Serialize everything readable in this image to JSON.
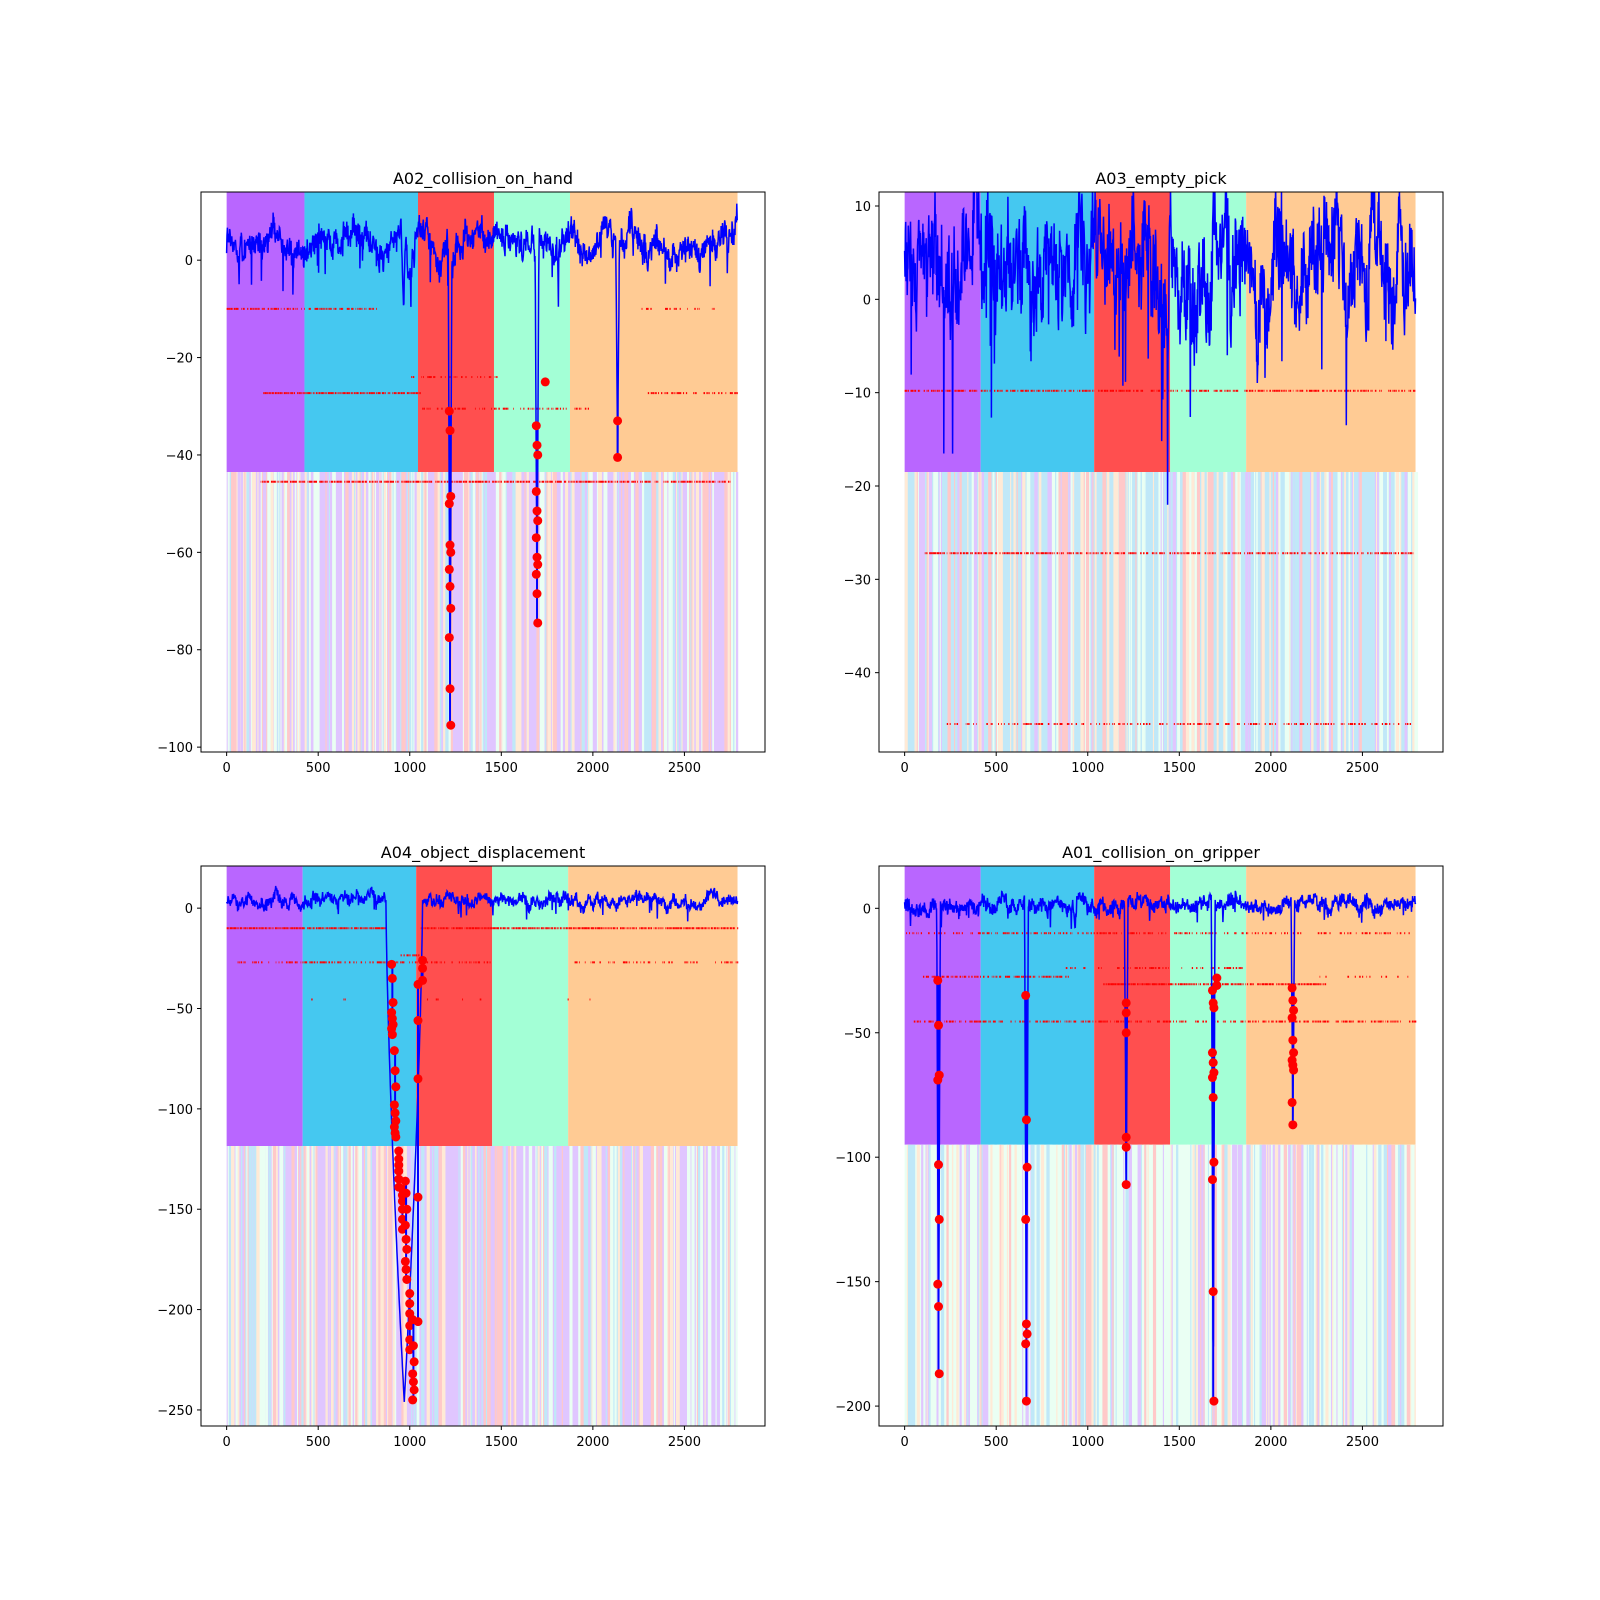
{
  "figure": {
    "panel_backgrounds": [
      "#b966ff",
      "#45c8f0",
      "#ff4f4f",
      "#a3ffd6",
      "#ffcb94"
    ],
    "line_color": "#0000ff",
    "marker_color": "#ff0000"
  },
  "chart_data": [
    {
      "type": "line",
      "title": "A02_collision_on_hand",
      "xlim": [
        -140,
        2940
      ],
      "ylim": [
        -101,
        14
      ],
      "xticks": [
        0,
        500,
        1000,
        1500,
        2000,
        2500
      ],
      "yticks": [
        0,
        -20,
        -40,
        -60,
        -80,
        -100
      ],
      "phase_boundaries": [
        0,
        425,
        1045,
        1460,
        1875,
        2790
      ],
      "strip_top": -43.5,
      "strip_bottom": -101,
      "dominant_strip": "#e0c6ff",
      "baseline": {
        "base": 3.5,
        "noise": 3.5,
        "dips": [
          {
            "x": 965,
            "depth": 14,
            "width": 12
          },
          {
            "x": 1220,
            "depth": 96,
            "width": 10
          },
          {
            "x": 1695,
            "depth": 74,
            "width": 10
          },
          {
            "x": 2135,
            "depth": 44,
            "width": 10
          },
          {
            "x": 1000,
            "depth": 6,
            "width": 30
          }
        ]
      },
      "dash_levels": [
        {
          "y": -10,
          "from": 0,
          "to": 820,
          "density": 0.7
        },
        {
          "y": -10,
          "from": 2250,
          "to": 2700,
          "density": 0.2
        },
        {
          "y": -27.3,
          "from": 200,
          "to": 1060,
          "density": 0.95
        },
        {
          "y": -27.3,
          "from": 2300,
          "to": 2790,
          "density": 0.6
        },
        {
          "y": -24,
          "from": 1000,
          "to": 1500,
          "density": 0.4
        },
        {
          "y": -30.5,
          "from": 1060,
          "to": 2000,
          "density": 0.5
        },
        {
          "y": -45.5,
          "from": 170,
          "to": 2750,
          "density": 0.85
        }
      ],
      "anomaly_points": [
        {
          "x": 1220,
          "ys": [
            -31,
            -35,
            -48.5,
            -50,
            -58.5,
            -60,
            -63.5,
            -67,
            -71.5,
            -77.5,
            -88,
            -95.5
          ]
        },
        {
          "x": 1695,
          "ys": [
            -34,
            -38,
            -40,
            -47.5,
            -51.5,
            -53.5,
            -57,
            -61,
            -62.5,
            -64.5,
            -68.5,
            -74.5
          ]
        },
        {
          "x": 1740,
          "ys": [
            -25
          ]
        },
        {
          "x": 2135,
          "ys": [
            -33,
            -40.5
          ]
        }
      ]
    },
    {
      "type": "line",
      "title": "A03_empty_pick",
      "xlim": [
        -140,
        2940
      ],
      "ylim": [
        -48.5,
        11.5
      ],
      "xticks": [
        0,
        500,
        1000,
        1500,
        2000,
        2500
      ],
      "yticks": [
        10,
        0,
        -10,
        -20,
        -30,
        -40
      ],
      "phase_boundaries": [
        0,
        415,
        1035,
        1450,
        1865,
        2790
      ],
      "strip_top": -18.5,
      "strip_bottom": -48.5,
      "dominant_strip": "#c0e8f8",
      "baseline": {
        "base": 4,
        "noise": 6,
        "dips": []
      },
      "dash_levels": [
        {
          "y": -9.8,
          "from": 0,
          "to": 2790,
          "density": 0.7
        },
        {
          "y": -27.2,
          "from": 110,
          "to": 2790,
          "density": 0.75
        },
        {
          "y": -45.5,
          "from": 230,
          "to": 2760,
          "density": 0.45
        }
      ],
      "anomaly_points": []
    },
    {
      "type": "line",
      "title": "A04_object_displacement",
      "xlim": [
        -140,
        2940
      ],
      "ylim": [
        -258,
        21
      ],
      "xticks": [
        0,
        500,
        1000,
        1500,
        2000,
        2500
      ],
      "yticks": [
        0,
        -50,
        -100,
        -150,
        -200,
        -250
      ],
      "phase_boundaries": [
        0,
        415,
        1035,
        1450,
        1865,
        2790
      ],
      "strip_top": -118.5,
      "strip_bottom": -258,
      "dominant_strip": "#e0c6ff",
      "baseline": {
        "base": 4,
        "noise": 3.5,
        "dips": []
      },
      "crash": {
        "from": 870,
        "to": 1070
      },
      "dash_levels": [
        {
          "y": -10,
          "from": 0,
          "to": 870,
          "density": 0.95
        },
        {
          "y": -10,
          "from": 1060,
          "to": 2790,
          "density": 0.95
        },
        {
          "y": -27,
          "from": 60,
          "to": 1450,
          "density": 0.5
        },
        {
          "y": -27,
          "from": 1900,
          "to": 2790,
          "density": 0.4
        },
        {
          "y": -23.5,
          "from": 950,
          "to": 1050,
          "density": 0.9
        },
        {
          "y": -45.5,
          "from": 150,
          "to": 2000,
          "density": 0.05
        }
      ],
      "anomaly_points": [
        {
          "x": 905,
          "ys": [
            -28,
            -35,
            -47,
            -52,
            -55,
            -58,
            -60,
            -63
          ]
        },
        {
          "x": 920,
          "ys": [
            -71,
            -81,
            -89,
            -98,
            -102,
            -106,
            -109,
            -112,
            -114
          ]
        },
        {
          "x": 940,
          "ys": [
            -121,
            -125,
            -128,
            -131,
            -135,
            -139
          ]
        },
        {
          "x": 960,
          "ys": [
            -140,
            -143,
            -146,
            -150,
            -155,
            -160
          ]
        },
        {
          "x": 980,
          "ys": [
            -136,
            -142,
            -150,
            -158,
            -165,
            -170,
            -176,
            -180,
            -185
          ]
        },
        {
          "x": 1000,
          "ys": [
            -192,
            -197,
            -202,
            -208,
            -215,
            -220
          ]
        },
        {
          "x": 1020,
          "ys": [
            -205,
            -218,
            -226,
            -232,
            -236,
            -240,
            -245
          ]
        },
        {
          "x": 1045,
          "ys": [
            -144,
            -206,
            -85,
            -56,
            -38
          ]
        },
        {
          "x": 1070,
          "ys": [
            -26,
            -30,
            -36
          ]
        }
      ]
    },
    {
      "type": "line",
      "title": "A01_collision_on_gripper",
      "xlim": [
        -140,
        2940
      ],
      "ylim": [
        -208,
        17
      ],
      "xticks": [
        0,
        500,
        1000,
        1500,
        2000,
        2500
      ],
      "yticks": [
        0,
        -50,
        -100,
        -150,
        -200
      ],
      "phase_boundaries": [
        0,
        415,
        1035,
        1450,
        1865,
        2790
      ],
      "strip_top": -95,
      "strip_bottom": -208,
      "dominant_strip": "#eafff3",
      "baseline": {
        "base": 1.5,
        "noise": 3.5,
        "dips": [
          {
            "x": 185,
            "depth": 188,
            "width": 10
          },
          {
            "x": 665,
            "depth": 198,
            "width": 10
          },
          {
            "x": 1210,
            "depth": 111,
            "width": 10
          },
          {
            "x": 1685,
            "depth": 199,
            "width": 10
          },
          {
            "x": 2120,
            "depth": 87,
            "width": 10
          },
          {
            "x": 930,
            "depth": 12,
            "width": 12
          }
        ]
      },
      "dash_levels": [
        {
          "y": -10,
          "from": 0,
          "to": 2790,
          "density": 0.5
        },
        {
          "y": -27.5,
          "from": 100,
          "to": 900,
          "density": 0.6
        },
        {
          "y": -27.5,
          "from": 2250,
          "to": 2790,
          "density": 0.2
        },
        {
          "y": -24,
          "from": 880,
          "to": 1850,
          "density": 0.4
        },
        {
          "y": -30.5,
          "from": 1085,
          "to": 2300,
          "density": 0.95
        },
        {
          "y": -45.5,
          "from": 50,
          "to": 2790,
          "density": 0.6
        }
      ],
      "anomaly_points": [
        {
          "x": 185,
          "ys": [
            -29,
            -47,
            -67,
            -69,
            -103,
            -125,
            -151,
            -160,
            -187
          ]
        },
        {
          "x": 665,
          "ys": [
            -35,
            -85,
            -104,
            -125,
            -167,
            -171,
            -175,
            -198
          ]
        },
        {
          "x": 1210,
          "ys": [
            -38,
            -42,
            -50,
            -92,
            -96,
            -111
          ]
        },
        {
          "x": 1685,
          "ys": [
            -33,
            -38,
            -40,
            -58,
            -62,
            -66,
            -68,
            -76,
            -102,
            -109,
            -154,
            -198
          ]
        },
        {
          "x": 1705,
          "ys": [
            -28,
            -31
          ]
        },
        {
          "x": 2120,
          "ys": [
            -32,
            -37,
            -41,
            -44,
            -53,
            -58,
            -61,
            -63,
            -65,
            -78,
            -87
          ]
        }
      ]
    }
  ]
}
